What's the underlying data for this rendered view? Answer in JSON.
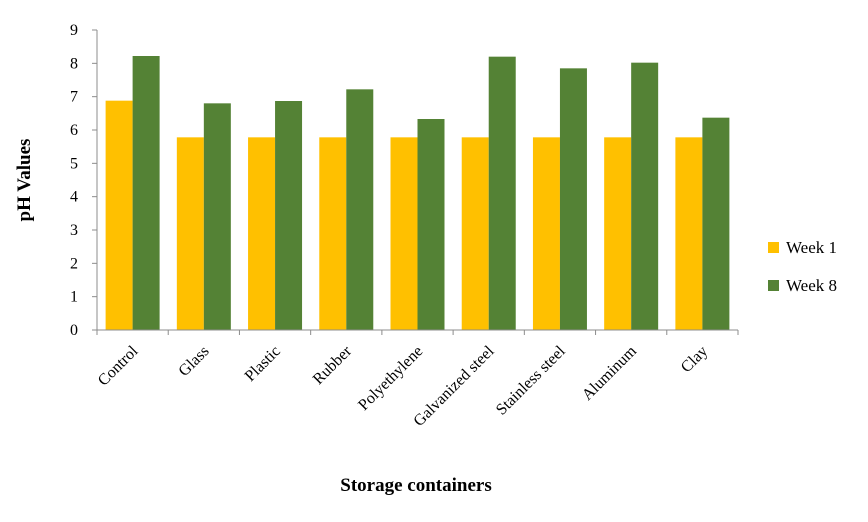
{
  "chart_data": {
    "type": "bar",
    "title": "",
    "xlabel": "Storage containers",
    "ylabel": "pH Values",
    "ylim": [
      0,
      9
    ],
    "yticks": [
      "0",
      "1",
      "2",
      "3",
      "4",
      "5",
      "6",
      "7",
      "8",
      "9"
    ],
    "grid": false,
    "legend_position": "right",
    "categories": [
      "Control",
      "Glass",
      "Plastic",
      "Rubber",
      "Polyethylene",
      "Galvanized steel",
      "Stainless steel",
      "Aluminum",
      "Clay"
    ],
    "series": [
      {
        "name": "Week 1",
        "color": "#FFC000",
        "values": [
          6.88,
          5.78,
          5.78,
          5.78,
          5.78,
          5.78,
          5.78,
          5.78,
          5.78
        ]
      },
      {
        "name": "Week 8",
        "color": "#548235",
        "values": [
          8.22,
          6.8,
          6.87,
          7.22,
          6.33,
          8.2,
          7.85,
          8.02,
          6.37
        ]
      }
    ]
  }
}
